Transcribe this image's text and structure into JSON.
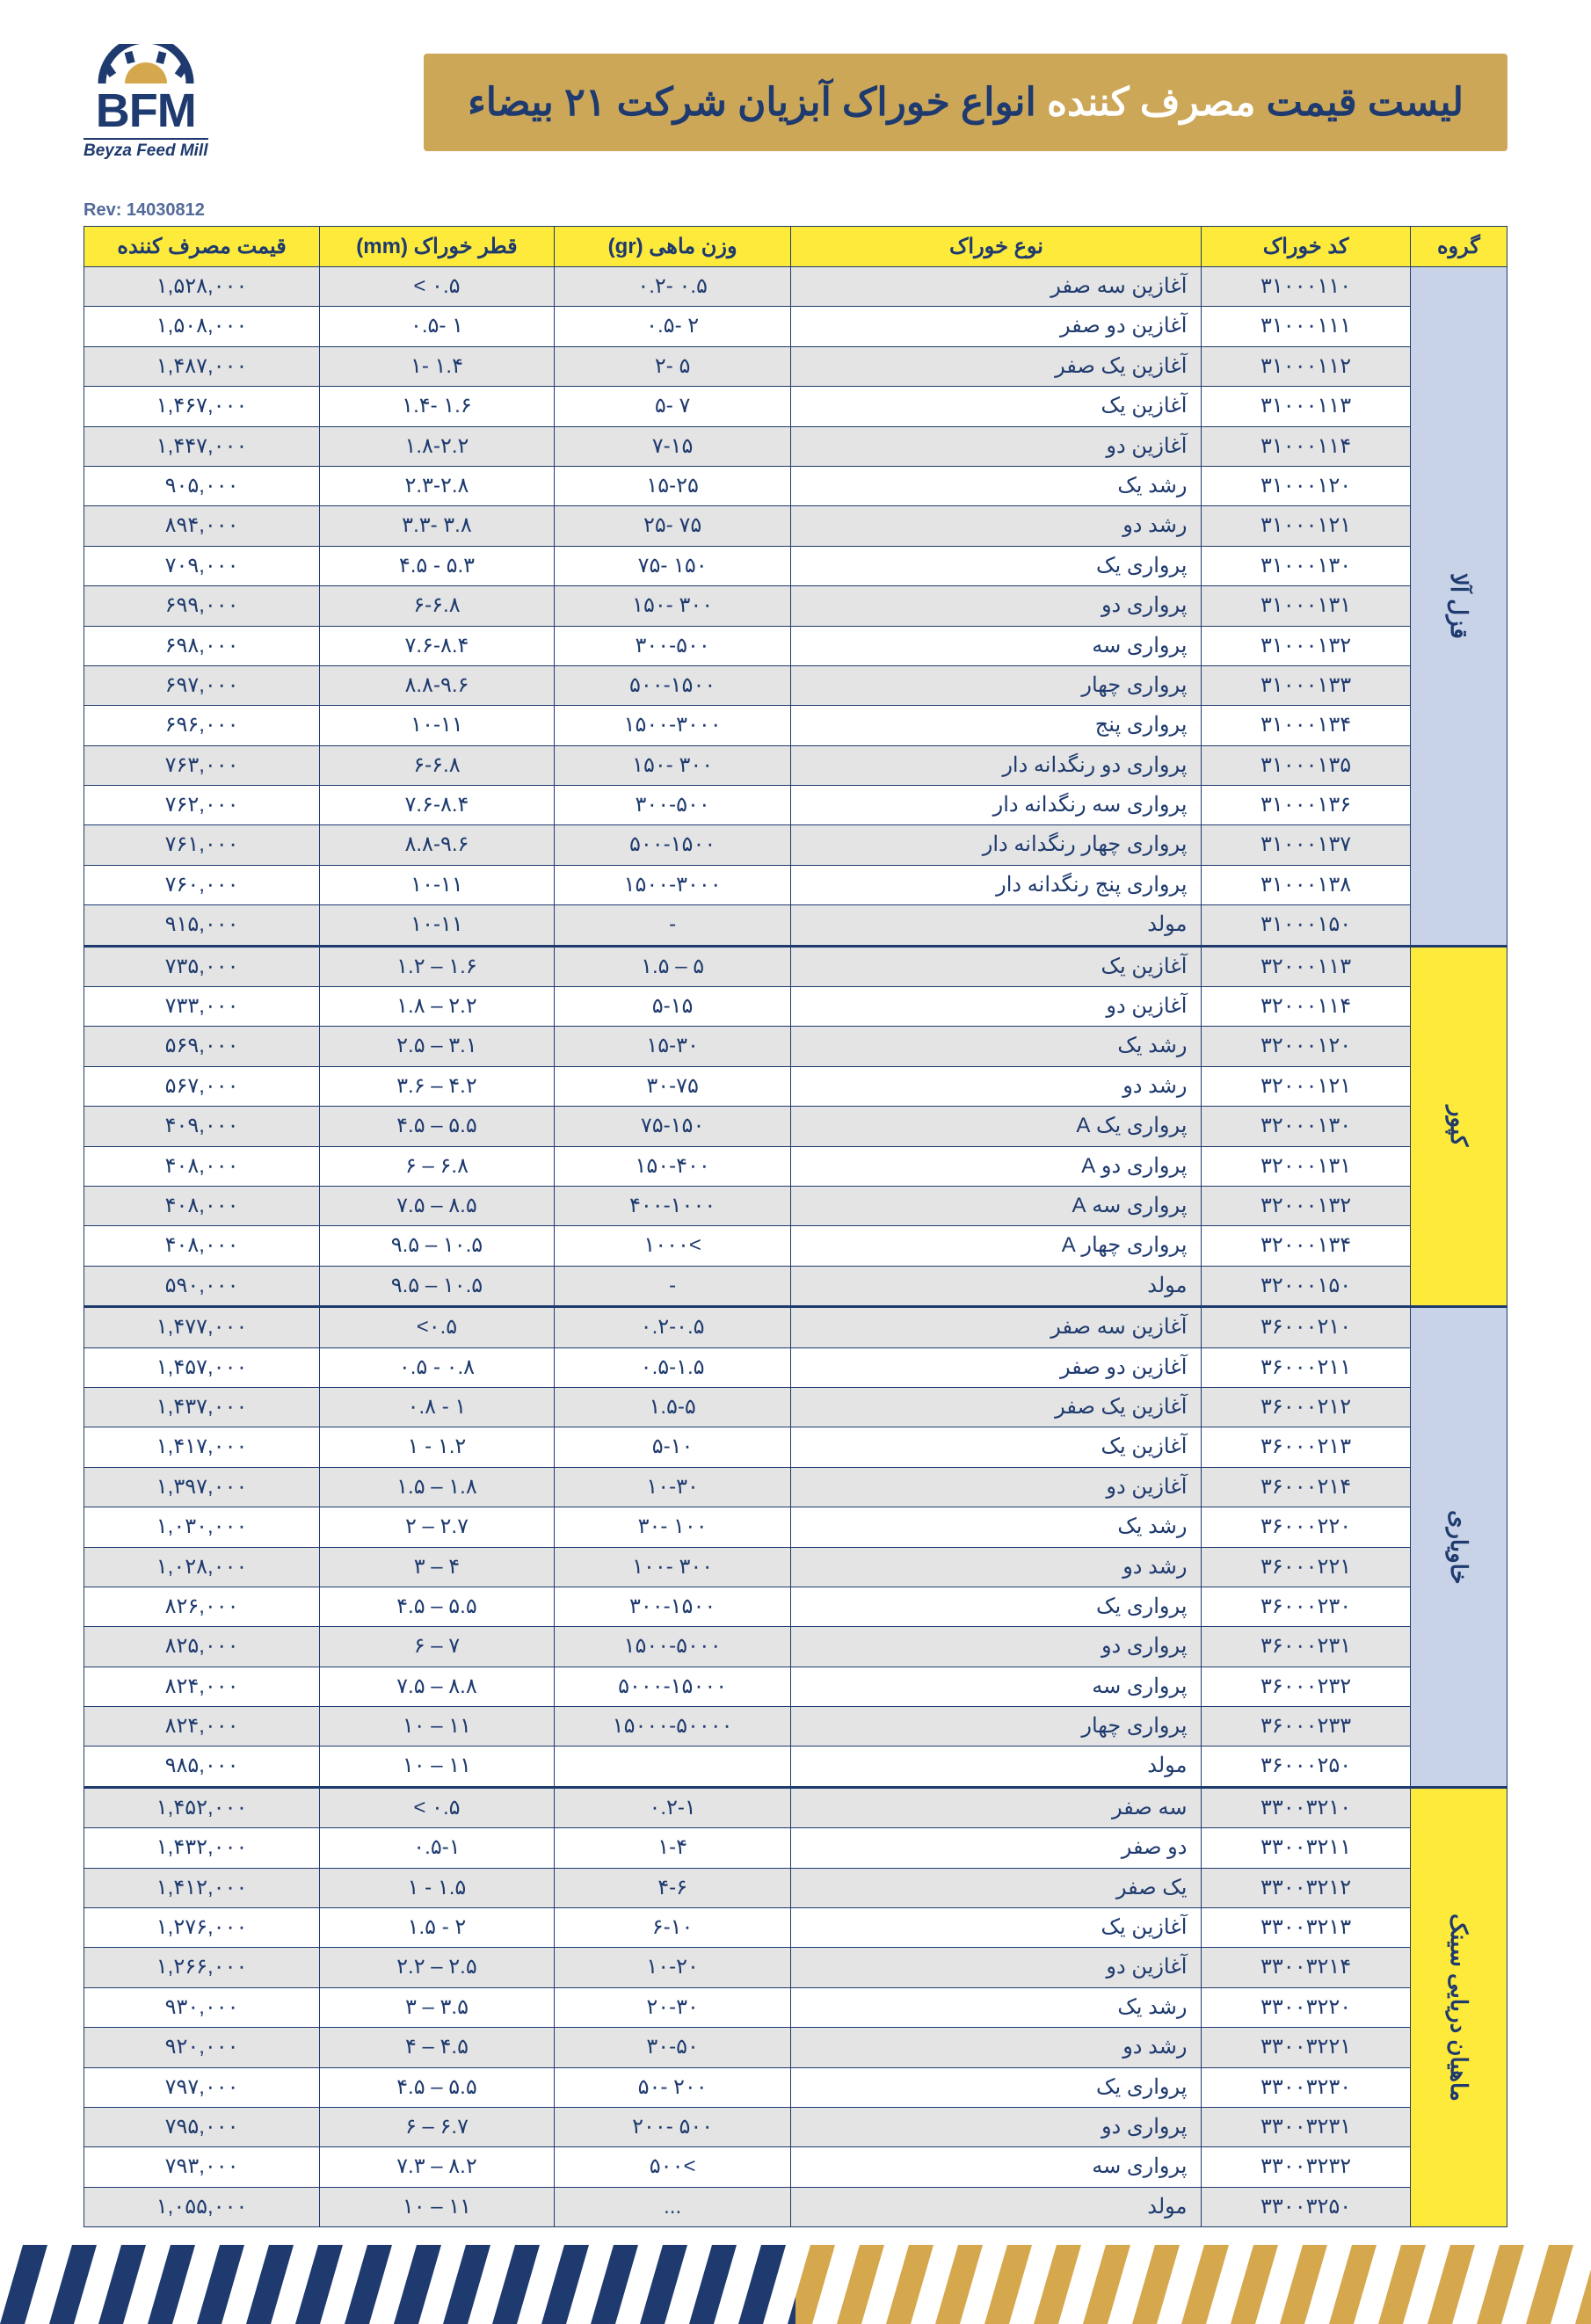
{
  "logo": {
    "main": "BFM",
    "sub": "Beyza Feed Mill"
  },
  "title_pre": "لیست قیمت ",
  "title_highlight": "مصرف کننده",
  "title_post": " انواع خوراک آبزیان شرکت ۲۱ بیضاء",
  "rev": "Rev: 14030812",
  "headers": {
    "group": "گروه",
    "code": "کد خوراک",
    "type": "نوع خوراک",
    "weight": "وزن ماهی (gr)",
    "diameter": "قطر خوراک (mm)",
    "price": "قیمت مصرف کننده"
  },
  "colors": {
    "yellow": "#feea3a",
    "gold": "#cca757",
    "navy": "#1e3a6e",
    "blue_group": "#c8d3e8",
    "row_shade": "#e4e4e4"
  },
  "groups": [
    {
      "name": "قزل آلا",
      "color": "blue",
      "rows": [
        {
          "code": "۳۱۰۰۰۱۱۰",
          "type": "آغازین سه صفر",
          "weight": "۰.۲- ۰.۵",
          "diameter": "< ۰.۵",
          "price": "۱,۵۲۸,۰۰۰"
        },
        {
          "code": "۳۱۰۰۰۱۱۱",
          "type": "آغازین دو صفر",
          "weight": "۰.۵- ۲",
          "diameter": "۰.۵- ۱",
          "price": "۱,۵۰۸,۰۰۰"
        },
        {
          "code": "۳۱۰۰۰۱۱۲",
          "type": "آغازین یک صفر",
          "weight": "۲- ۵",
          "diameter": "۱- ۱.۴",
          "price": "۱,۴۸۷,۰۰۰"
        },
        {
          "code": "۳۱۰۰۰۱۱۳",
          "type": "آغازین یک",
          "weight": "۵- ۷",
          "diameter": "۱.۴- ۱.۶",
          "price": "۱,۴۶۷,۰۰۰"
        },
        {
          "code": "۳۱۰۰۰۱۱۴",
          "type": "آغازین دو",
          "weight": "۷-۱۵",
          "diameter": "۱.۸-۲.۲",
          "price": "۱,۴۴۷,۰۰۰"
        },
        {
          "code": "۳۱۰۰۰۱۲۰",
          "type": "رشد یک",
          "weight": "۱۵-۲۵",
          "diameter": "۲.۳-۲.۸",
          "price": "۹۰۵,۰۰۰"
        },
        {
          "code": "۳۱۰۰۰۱۲۱",
          "type": "رشد دو",
          "weight": "۲۵- ۷۵",
          "diameter": "۳.۳- ۳.۸",
          "price": "۸۹۴,۰۰۰"
        },
        {
          "code": "۳۱۰۰۰۱۳۰",
          "type": "پرواری یک",
          "weight": "۷۵- ۱۵۰",
          "diameter": "۴.۵ - ۵.۳",
          "price": "۷۰۹,۰۰۰"
        },
        {
          "code": "۳۱۰۰۰۱۳۱",
          "type": "پرواری دو",
          "weight": "۱۵۰- ۳۰۰",
          "diameter": "۶-۶.۸",
          "price": "۶۹۹,۰۰۰"
        },
        {
          "code": "۳۱۰۰۰۱۳۲",
          "type": "پرواری سه",
          "weight": "۳۰۰-۵۰۰",
          "diameter": "۷.۶-۸.۴",
          "price": "۶۹۸,۰۰۰"
        },
        {
          "code": "۳۱۰۰۰۱۳۳",
          "type": "پرواری چهار",
          "weight": "۵۰۰-۱۵۰۰",
          "diameter": "۸.۸-۹.۶",
          "price": "۶۹۷,۰۰۰"
        },
        {
          "code": "۳۱۰۰۰۱۳۴",
          "type": "پرواری پنج",
          "weight": "۱۵۰۰-۳۰۰۰",
          "diameter": "۱۰-۱۱",
          "price": "۶۹۶,۰۰۰"
        },
        {
          "code": "۳۱۰۰۰۱۳۵",
          "type": "پرواری دو رنگدانه دار",
          "weight": "۱۵۰- ۳۰۰",
          "diameter": "۶-۶.۸",
          "price": "۷۶۳,۰۰۰"
        },
        {
          "code": "۳۱۰۰۰۱۳۶",
          "type": "پرواری سه رنگدانه دار",
          "weight": "۳۰۰-۵۰۰",
          "diameter": "۷.۶-۸.۴",
          "price": "۷۶۲,۰۰۰"
        },
        {
          "code": "۳۱۰۰۰۱۳۷",
          "type": "پرواری چهار رنگدانه دار",
          "weight": "۵۰۰-۱۵۰۰",
          "diameter": "۸.۸-۹.۶",
          "price": "۷۶۱,۰۰۰"
        },
        {
          "code": "۳۱۰۰۰۱۳۸",
          "type": "پرواری پنج رنگدانه دار",
          "weight": "۱۵۰۰-۳۰۰۰",
          "diameter": "۱۰-۱۱",
          "price": "۷۶۰,۰۰۰"
        },
        {
          "code": "۳۱۰۰۰۱۵۰",
          "type": "مولد",
          "weight": "-",
          "diameter": "۱۰-۱۱",
          "price": "۹۱۵,۰۰۰"
        }
      ]
    },
    {
      "name": "کپور",
      "color": "yellow",
      "rows": [
        {
          "code": "۳۲۰۰۰۱۱۳",
          "type": "آغازین یک",
          "weight": "۱.۵ – ۵",
          "diameter": "۱.۲ – ۱.۶",
          "price": "۷۳۵,۰۰۰"
        },
        {
          "code": "۳۲۰۰۰۱۱۴",
          "type": "آغازین دو",
          "weight": "۵-۱۵",
          "diameter": "۱.۸ – ۲.۲",
          "price": "۷۳۳,۰۰۰"
        },
        {
          "code": "۳۲۰۰۰۱۲۰",
          "type": "رشد یک",
          "weight": "۱۵-۳۰",
          "diameter": "۲.۵ – ۳.۱",
          "price": "۵۶۹,۰۰۰"
        },
        {
          "code": "۳۲۰۰۰۱۲۱",
          "type": "رشد دو",
          "weight": "۳۰-۷۵",
          "diameter": "۳.۶ – ۴.۲",
          "price": "۵۶۷,۰۰۰"
        },
        {
          "code": "۳۲۰۰۰۱۳۰",
          "type": "پرواری یک A",
          "weight": "۷۵-۱۵۰",
          "diameter": "۴.۵ – ۵.۵",
          "price": "۴۰۹,۰۰۰"
        },
        {
          "code": "۳۲۰۰۰۱۳۱",
          "type": "پرواری دو A",
          "weight": "۱۵۰-۴۰۰",
          "diameter": "۶ – ۶.۸",
          "price": "۴۰۸,۰۰۰"
        },
        {
          "code": "۳۲۰۰۰۱۳۲",
          "type": "پرواری سه A",
          "weight": "۴۰۰-۱۰۰۰",
          "diameter": "۷.۵ – ۸.۵",
          "price": "۴۰۸,۰۰۰"
        },
        {
          "code": "۳۲۰۰۰۱۳۴",
          "type": "پرواری چهار A",
          "weight": "۱۰۰۰<",
          "diameter": "۹.۵ – ۱۰.۵",
          "price": "۴۰۸,۰۰۰"
        },
        {
          "code": "۳۲۰۰۰۱۵۰",
          "type": "مولد",
          "weight": "-",
          "diameter": "۹.۵ – ۱۰.۵",
          "price": "۵۹۰,۰۰۰"
        }
      ]
    },
    {
      "name": "خاویاری",
      "color": "blue",
      "rows": [
        {
          "code": "۳۶۰۰۰۲۱۰",
          "type": "آغازین سه صفر",
          "weight": "۰.۲-۰.۵",
          "diameter": "<۰.۵",
          "price": "۱,۴۷۷,۰۰۰"
        },
        {
          "code": "۳۶۰۰۰۲۱۱",
          "type": "آغازین دو صفر",
          "weight": "۰.۵-۱.۵",
          "diameter": "۰.۵ - ۰.۸",
          "price": "۱,۴۵۷,۰۰۰"
        },
        {
          "code": "۳۶۰۰۰۲۱۲",
          "type": "آغازین یک صفر",
          "weight": "۱.۵-۵",
          "diameter": "۰.۸ - ۱",
          "price": "۱,۴۳۷,۰۰۰"
        },
        {
          "code": "۳۶۰۰۰۲۱۳",
          "type": "آغازین یک",
          "weight": "۵-۱۰",
          "diameter": "۱ - ۱.۲",
          "price": "۱,۴۱۷,۰۰۰"
        },
        {
          "code": "۳۶۰۰۰۲۱۴",
          "type": "آغازین دو",
          "weight": "۱۰-۳۰",
          "diameter": "۱.۵ – ۱.۸",
          "price": "۱,۳۹۷,۰۰۰"
        },
        {
          "code": "۳۶۰۰۰۲۲۰",
          "type": "رشد یک",
          "weight": "۳۰- ۱۰۰",
          "diameter": "۲ – ۲.۷",
          "price": "۱,۰۳۰,۰۰۰"
        },
        {
          "code": "۳۶۰۰۰۲۲۱",
          "type": "رشد دو",
          "weight": "۱۰۰- ۳۰۰",
          "diameter": "۳ – ۴",
          "price": "۱,۰۲۸,۰۰۰"
        },
        {
          "code": "۳۶۰۰۰۲۳۰",
          "type": "پرواری یک",
          "weight": "۳۰۰-۱۵۰۰",
          "diameter": "۴.۵ – ۵.۵",
          "price": "۸۲۶,۰۰۰"
        },
        {
          "code": "۳۶۰۰۰۲۳۱",
          "type": "پرواری دو",
          "weight": "۱۵۰۰-۵۰۰۰",
          "diameter": "۶ – ۷",
          "price": "۸۲۵,۰۰۰"
        },
        {
          "code": "۳۶۰۰۰۲۳۲",
          "type": "پرواری سه",
          "weight": "۵۰۰۰-۱۵۰۰۰",
          "diameter": "۷.۵ – ۸.۸",
          "price": "۸۲۴,۰۰۰"
        },
        {
          "code": "۳۶۰۰۰۲۳۳",
          "type": "پرواری چهار",
          "weight": "۱۵۰۰۰-۵۰۰۰۰",
          "diameter": "۱۰ – ۱۱",
          "price": "۸۲۴,۰۰۰"
        },
        {
          "code": "۳۶۰۰۰۲۵۰",
          "type": "مولد",
          "weight": "",
          "diameter": "۱۰ – ۱۱",
          "price": "۹۸۵,۰۰۰"
        }
      ]
    },
    {
      "name": "ماهیان دریایی سینک",
      "color": "yellow",
      "rows": [
        {
          "code": "۳۳۰۰۳۲۱۰",
          "type": "سه صفر",
          "weight": "۰.۲-۱",
          "diameter": "< ۰.۵",
          "price": "۱,۴۵۲,۰۰۰"
        },
        {
          "code": "۳۳۰۰۳۲۱۱",
          "type": "دو صفر",
          "weight": "۱-۴",
          "diameter": "۰.۵-۱",
          "price": "۱,۴۳۲,۰۰۰"
        },
        {
          "code": "۳۳۰۰۳۲۱۲",
          "type": "یک صفر",
          "weight": "۴-۶",
          "diameter": "۱ - ۱.۵",
          "price": "۱,۴۱۲,۰۰۰"
        },
        {
          "code": "۳۳۰۰۳۲۱۳",
          "type": "آغازین یک",
          "weight": "۶-۱۰",
          "diameter": "۱.۵ - ۲",
          "price": "۱,۲۷۶,۰۰۰"
        },
        {
          "code": "۳۳۰۰۳۲۱۴",
          "type": "آغازین دو",
          "weight": "۱۰-۲۰",
          "diameter": "۲.۲ – ۲.۵",
          "price": "۱,۲۶۶,۰۰۰"
        },
        {
          "code": "۳۳۰۰۳۲۲۰",
          "type": "رشد یک",
          "weight": "۲۰-۳۰",
          "diameter": "۳ – ۳.۵",
          "price": "۹۳۰,۰۰۰"
        },
        {
          "code": "۳۳۰۰۳۲۲۱",
          "type": "رشد دو",
          "weight": "۳۰-۵۰",
          "diameter": "۴ – ۴.۵",
          "price": "۹۲۰,۰۰۰"
        },
        {
          "code": "۳۳۰۰۳۲۳۰",
          "type": "پرواری یک",
          "weight": "۵۰- ۲۰۰",
          "diameter": "۴.۵ – ۵.۵",
          "price": "۷۹۷,۰۰۰"
        },
        {
          "code": "۳۳۰۰۳۲۳۱",
          "type": "پرواری دو",
          "weight": "۲۰۰- ۵۰۰",
          "diameter": "۶ – ۶.۷",
          "price": "۷۹۵,۰۰۰"
        },
        {
          "code": "۳۳۰۰۳۲۳۲",
          "type": "پرواری سه",
          "weight": "۵۰۰<",
          "diameter": "۷.۳ – ۸.۲",
          "price": "۷۹۳,۰۰۰"
        },
        {
          "code": "۳۳۰۰۳۲۵۰",
          "type": "مولد",
          "weight": "...",
          "diameter": "۱۰ – ۱۱",
          "price": "۱,۰۵۵,۰۰۰"
        }
      ]
    }
  ]
}
